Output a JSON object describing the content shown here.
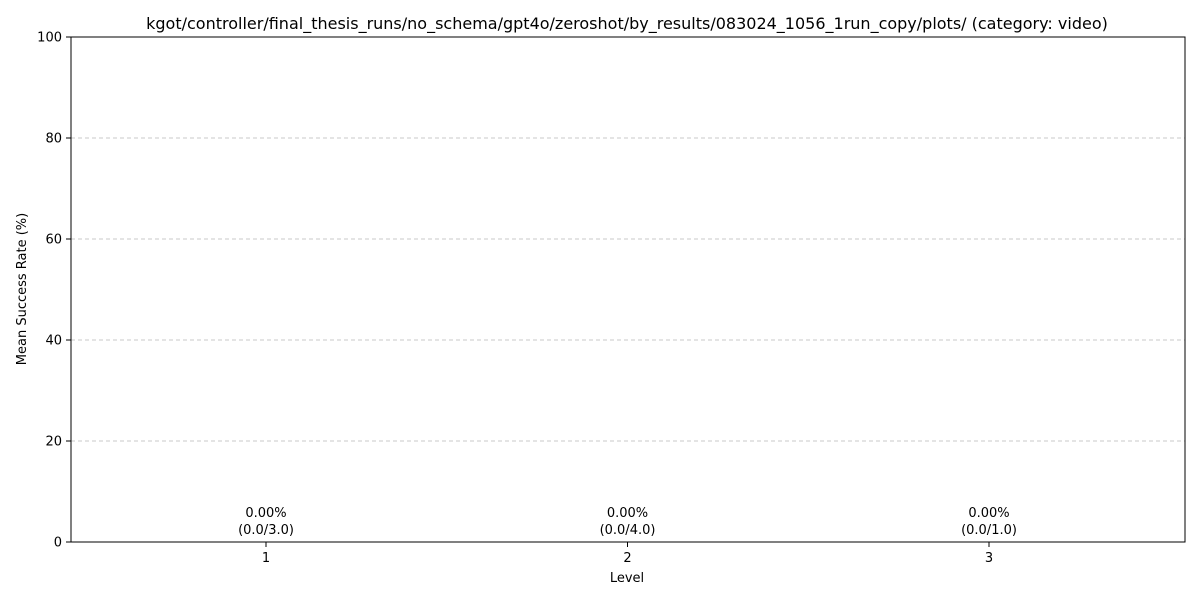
{
  "chart_data": {
    "type": "bar",
    "title": "kgot/controller/final_thesis_runs/no_schema/gpt4o/zeroshot/by_results/083024_1056_1run_copy/plots/ (category: video)",
    "xlabel": "Level",
    "ylabel": "Mean Success Rate (%)",
    "categories": [
      "1",
      "2",
      "3"
    ],
    "values": [
      0.0,
      0.0,
      0.0
    ],
    "data_labels": [
      {
        "percent": "0.00%",
        "ratio": "(0.0/3.0)"
      },
      {
        "percent": "0.00%",
        "ratio": "(0.0/4.0)"
      },
      {
        "percent": "0.00%",
        "ratio": "(0.0/1.0)"
      }
    ],
    "ylim": [
      0,
      100
    ],
    "yticks": [
      0,
      20,
      40,
      60,
      80,
      100
    ],
    "grid": "y-dashed",
    "bar_color": "#1f77b4"
  }
}
